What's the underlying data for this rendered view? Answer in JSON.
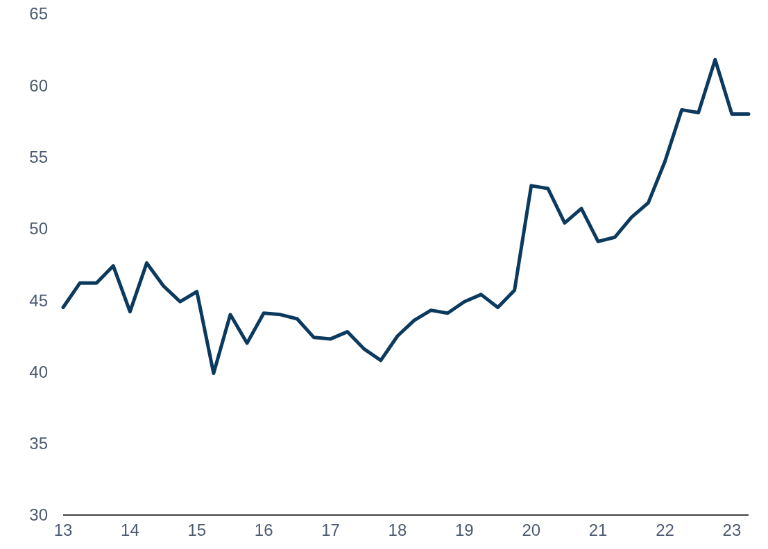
{
  "chart_data": {
    "type": "line",
    "x": [
      13,
      13.25,
      13.5,
      13.75,
      14,
      14.25,
      14.5,
      14.75,
      15,
      15.25,
      15.5,
      15.75,
      16,
      16.25,
      16.5,
      16.75,
      17,
      17.25,
      17.5,
      17.75,
      18,
      18.25,
      18.5,
      18.75,
      19,
      19.25,
      19.5,
      19.75,
      20,
      20.25,
      20.5,
      20.75,
      21,
      21.25,
      21.5,
      21.75,
      22,
      22.25,
      22.5,
      22.75,
      23,
      23.25
    ],
    "series": [
      {
        "color": "#0b3a5e",
        "values": [
          44.5,
          46.2,
          46.2,
          47.4,
          44.2,
          47.6,
          46.0,
          44.9,
          45.6,
          39.9,
          44.0,
          42.0,
          44.1,
          44.0,
          43.7,
          42.4,
          42.3,
          42.8,
          41.6,
          40.8,
          42.5,
          43.6,
          44.3,
          44.1,
          44.9,
          45.4,
          44.5,
          45.7,
          53.0,
          52.8,
          50.4,
          51.4,
          49.1,
          49.4,
          50.8,
          51.8,
          54.7,
          58.3,
          58.1,
          61.8,
          58.0,
          58.0
        ]
      }
    ],
    "xlim": [
      13,
      23.25
    ],
    "xticks": [
      13,
      14,
      15,
      16,
      17,
      18,
      19,
      20,
      21,
      22,
      23
    ],
    "ylim": [
      30,
      65
    ],
    "yticks": [
      30,
      35,
      40,
      45,
      50,
      55,
      60,
      65
    ],
    "grid": false,
    "marker": "none",
    "line_style": "solid"
  }
}
